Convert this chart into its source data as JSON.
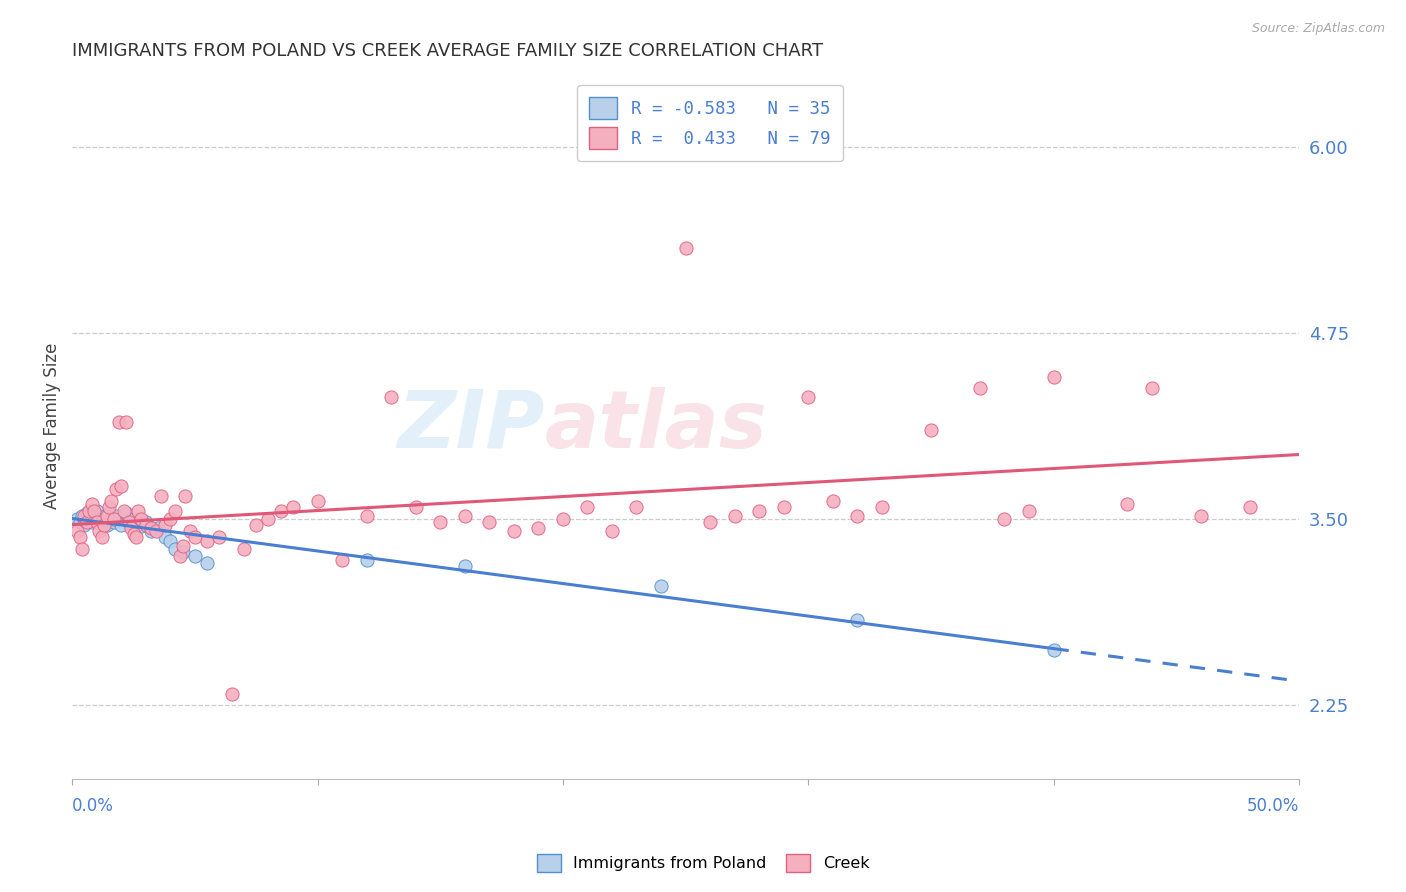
{
  "title": "IMMIGRANTS FROM POLAND VS CREEK AVERAGE FAMILY SIZE CORRELATION CHART",
  "source": "Source: ZipAtlas.com",
  "ylabel": "Average Family Size",
  "legend_label1": "Immigrants from Poland",
  "legend_label2": "Creek",
  "yticks_right": [
    2.25,
    3.5,
    4.75,
    6.0
  ],
  "watermark": "ZIPatlas",
  "blue_fill": "#b8d0ea",
  "pink_fill": "#f5b0c0",
  "blue_edge": "#5090d0",
  "pink_edge": "#e06080",
  "blue_line": "#4a7fd0",
  "pink_line": "#e05878",
  "blue_scatter": [
    [
      0.002,
      3.5
    ],
    [
      0.003,
      3.48
    ],
    [
      0.004,
      3.52
    ],
    [
      0.005,
      3.46
    ],
    [
      0.006,
      3.54
    ],
    [
      0.007,
      3.5
    ],
    [
      0.008,
      3.48
    ],
    [
      0.009,
      3.52
    ],
    [
      0.01,
      3.55
    ],
    [
      0.011,
      3.5
    ],
    [
      0.012,
      3.48
    ],
    [
      0.013,
      3.52
    ],
    [
      0.014,
      3.46
    ],
    [
      0.015,
      3.54
    ],
    [
      0.016,
      3.5
    ],
    [
      0.017,
      3.48
    ],
    [
      0.018,
      3.52
    ],
    [
      0.02,
      3.46
    ],
    [
      0.022,
      3.54
    ],
    [
      0.025,
      3.5
    ],
    [
      0.028,
      3.45
    ],
    [
      0.03,
      3.48
    ],
    [
      0.032,
      3.42
    ],
    [
      0.035,
      3.44
    ],
    [
      0.038,
      3.38
    ],
    [
      0.04,
      3.35
    ],
    [
      0.042,
      3.3
    ],
    [
      0.045,
      3.28
    ],
    [
      0.05,
      3.25
    ],
    [
      0.055,
      3.2
    ],
    [
      0.12,
      3.22
    ],
    [
      0.16,
      3.18
    ],
    [
      0.24,
      3.05
    ],
    [
      0.32,
      2.82
    ],
    [
      0.4,
      2.62
    ]
  ],
  "pink_scatter": [
    [
      0.002,
      3.42
    ],
    [
      0.003,
      3.38
    ],
    [
      0.004,
      3.3
    ],
    [
      0.005,
      3.52
    ],
    [
      0.006,
      3.48
    ],
    [
      0.007,
      3.55
    ],
    [
      0.008,
      3.6
    ],
    [
      0.009,
      3.55
    ],
    [
      0.01,
      3.48
    ],
    [
      0.011,
      3.42
    ],
    [
      0.012,
      3.38
    ],
    [
      0.013,
      3.46
    ],
    [
      0.014,
      3.52
    ],
    [
      0.015,
      3.58
    ],
    [
      0.016,
      3.62
    ],
    [
      0.017,
      3.5
    ],
    [
      0.018,
      3.7
    ],
    [
      0.019,
      4.15
    ],
    [
      0.02,
      3.72
    ],
    [
      0.021,
      3.55
    ],
    [
      0.022,
      4.15
    ],
    [
      0.023,
      3.48
    ],
    [
      0.024,
      3.44
    ],
    [
      0.025,
      3.4
    ],
    [
      0.026,
      3.38
    ],
    [
      0.027,
      3.55
    ],
    [
      0.028,
      3.5
    ],
    [
      0.03,
      3.46
    ],
    [
      0.032,
      3.44
    ],
    [
      0.034,
      3.42
    ],
    [
      0.036,
      3.65
    ],
    [
      0.038,
      3.46
    ],
    [
      0.04,
      3.5
    ],
    [
      0.042,
      3.55
    ],
    [
      0.044,
      3.25
    ],
    [
      0.045,
      3.32
    ],
    [
      0.046,
      3.65
    ],
    [
      0.048,
      3.42
    ],
    [
      0.05,
      3.38
    ],
    [
      0.055,
      3.35
    ],
    [
      0.06,
      3.38
    ],
    [
      0.065,
      2.32
    ],
    [
      0.07,
      3.3
    ],
    [
      0.075,
      3.46
    ],
    [
      0.08,
      3.5
    ],
    [
      0.085,
      3.55
    ],
    [
      0.09,
      3.58
    ],
    [
      0.1,
      3.62
    ],
    [
      0.11,
      3.22
    ],
    [
      0.12,
      3.52
    ],
    [
      0.13,
      4.32
    ],
    [
      0.14,
      3.58
    ],
    [
      0.15,
      3.48
    ],
    [
      0.16,
      3.52
    ],
    [
      0.17,
      3.48
    ],
    [
      0.18,
      3.42
    ],
    [
      0.19,
      3.44
    ],
    [
      0.2,
      3.5
    ],
    [
      0.21,
      3.58
    ],
    [
      0.22,
      3.42
    ],
    [
      0.23,
      3.58
    ],
    [
      0.25,
      5.32
    ],
    [
      0.26,
      3.48
    ],
    [
      0.27,
      3.52
    ],
    [
      0.28,
      3.55
    ],
    [
      0.29,
      3.58
    ],
    [
      0.3,
      4.32
    ],
    [
      0.31,
      3.62
    ],
    [
      0.32,
      3.52
    ],
    [
      0.33,
      3.58
    ],
    [
      0.35,
      4.1
    ],
    [
      0.37,
      4.38
    ],
    [
      0.38,
      3.5
    ],
    [
      0.39,
      3.55
    ],
    [
      0.4,
      4.45
    ],
    [
      0.43,
      3.6
    ],
    [
      0.44,
      4.38
    ],
    [
      0.46,
      3.52
    ],
    [
      0.48,
      3.58
    ]
  ],
  "xmin": 0.0,
  "xmax": 0.5,
  "ymin": 1.75,
  "ymax": 6.5,
  "bg_color": "#ffffff",
  "grid_color": "#cccccc"
}
